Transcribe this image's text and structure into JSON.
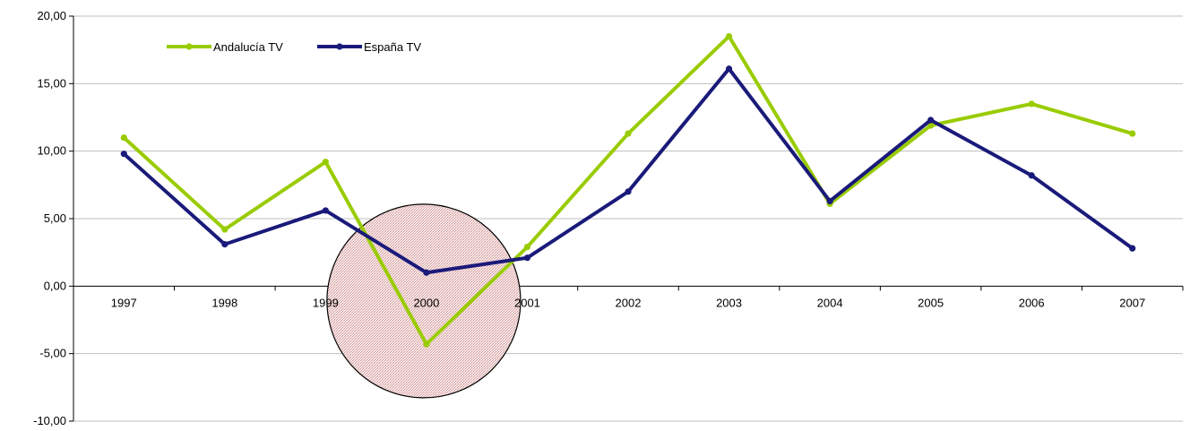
{
  "chart_data": {
    "type": "line",
    "categories": [
      "1997",
      "1998",
      "1999",
      "2000",
      "2001",
      "2002",
      "2003",
      "2004",
      "2005",
      "2006",
      "2007"
    ],
    "series": [
      {
        "name": "Andalucía TV",
        "color": "#99cc00",
        "values": [
          11.0,
          4.2,
          9.2,
          -4.3,
          2.9,
          11.3,
          18.5,
          6.1,
          11.9,
          13.5,
          11.3
        ]
      },
      {
        "name": "España TV",
        "color": "#1a1a7a",
        "values": [
          9.8,
          3.1,
          5.6,
          1.0,
          2.1,
          7.0,
          16.1,
          6.3,
          12.3,
          8.2,
          2.8
        ]
      }
    ],
    "ylim": [
      -10,
      20
    ],
    "yticks": [
      "-10,00",
      "-5,00",
      "0,00",
      "5,00",
      "10,00",
      "15,00",
      "20,00"
    ],
    "grid": true,
    "legend_position": "top-left",
    "annotation": {
      "shape": "circle",
      "fill": "pink hatched",
      "highlight_category": "2000"
    }
  }
}
